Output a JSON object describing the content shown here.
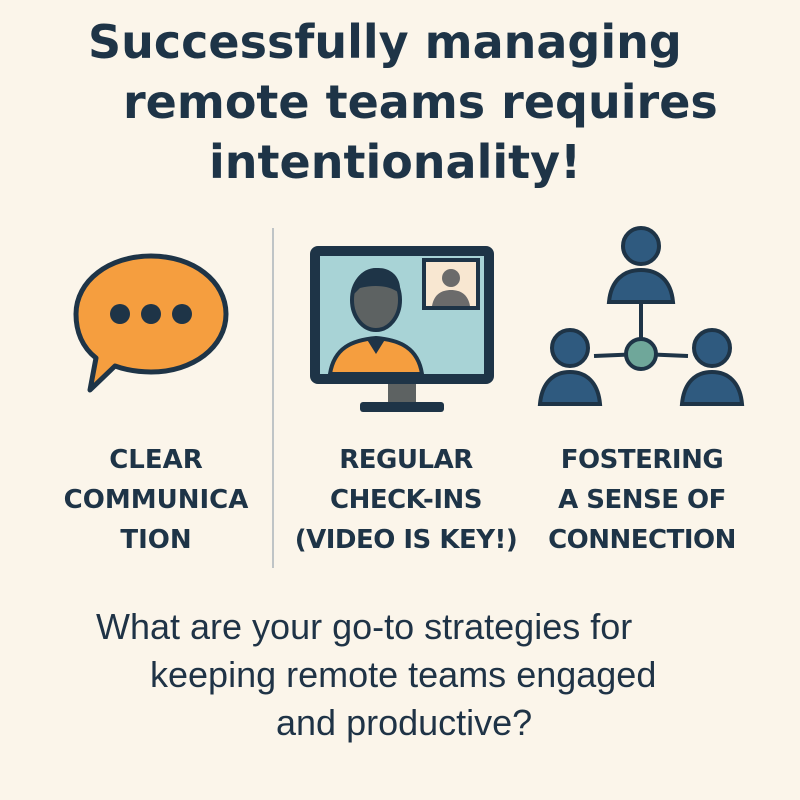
{
  "headline": {
    "line1": "Successfully managing",
    "line2": "remote teams requires",
    "line3": "intentionality!"
  },
  "pillars": [
    {
      "icon": "speech-bubble-icon",
      "lines": [
        "CLEAR",
        "COMMUNICA",
        "TION"
      ]
    },
    {
      "icon": "video-call-icon",
      "lines": [
        "REGULAR",
        "CHECK-INS",
        "(VIDEO IS KEY!)"
      ]
    },
    {
      "icon": "team-network-icon",
      "lines": [
        "FOSTERING",
        "A SENSE OF",
        "CONNECTION"
      ]
    }
  ],
  "question": {
    "line1": "What are your go-to strategies for",
    "line2": "keeping remote teams engaged",
    "line3": "and productive?"
  },
  "colors": {
    "background": "#fbf5ea",
    "navy": "#1e3447",
    "orange": "#f59e3f",
    "screen": "#a8d3d6",
    "people_blue": "#2f5a7f",
    "divider": "#bfc4c6"
  }
}
